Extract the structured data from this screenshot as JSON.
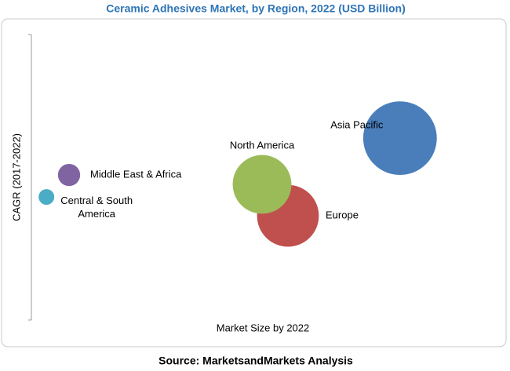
{
  "chart_data": {
    "type": "bubble",
    "title": "Ceramic Adhesives Market, by Region, 2022 (USD Billion)",
    "x_label": "Market Size by 2022",
    "y_label": "CAGR (2017-2022)",
    "source": "Source: MarketsandMarkets Analysis",
    "xlim": [
      0,
      100
    ],
    "ylim": [
      0,
      100
    ],
    "points": [
      {
        "name": "Middle East & Africa",
        "color": "#8064a2",
        "x": 8,
        "y": 50.8,
        "size": 2
      },
      {
        "name": "Central & South America",
        "color": "#4bacc6",
        "x": 3.2,
        "y": 43.1,
        "size": 1
      },
      {
        "name": "Europe",
        "color": "#c0504d",
        "x": 54.5,
        "y": 36.5,
        "size": 15.5
      },
      {
        "name": "North America",
        "color": "#9bbb59",
        "x": 49,
        "y": 47.5,
        "size": 14
      },
      {
        "name": "Asia Pacific",
        "color": "#4a7ebb",
        "x": 78.3,
        "y": 63.7,
        "size": 22
      }
    ]
  }
}
